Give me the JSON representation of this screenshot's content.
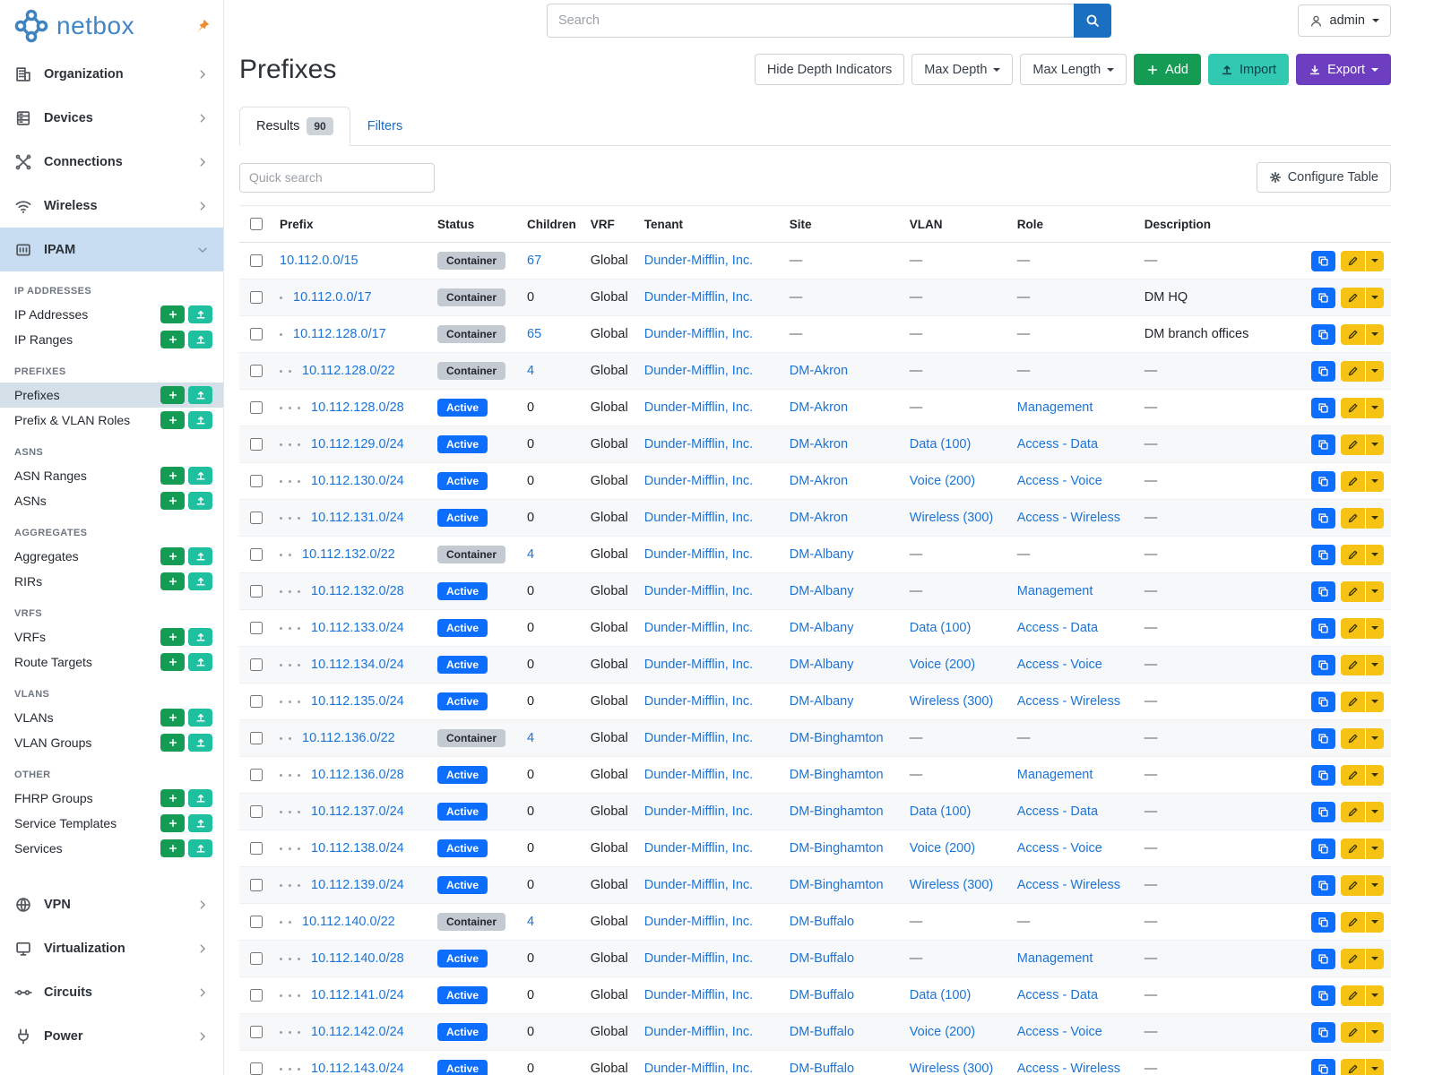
{
  "brand": {
    "name": "netbox"
  },
  "topbar": {
    "search_placeholder": "Search",
    "user_label": "admin"
  },
  "sidebar": {
    "top_items": [
      {
        "label": "Organization",
        "icon": "building-icon"
      },
      {
        "label": "Devices",
        "icon": "rack-icon"
      },
      {
        "label": "Connections",
        "icon": "cable-icon"
      },
      {
        "label": "Wireless",
        "icon": "wifi-icon"
      }
    ],
    "ipam": {
      "label": "IPAM",
      "icon": "ipam-icon"
    },
    "groups": [
      {
        "heading": "IP ADDRESSES",
        "items": [
          {
            "label": "IP Addresses"
          },
          {
            "label": "IP Ranges"
          }
        ]
      },
      {
        "heading": "PREFIXES",
        "items": [
          {
            "label": "Prefixes",
            "active": true
          },
          {
            "label": "Prefix & VLAN Roles"
          }
        ]
      },
      {
        "heading": "ASNS",
        "items": [
          {
            "label": "ASN Ranges"
          },
          {
            "label": "ASNs"
          }
        ]
      },
      {
        "heading": "AGGREGATES",
        "items": [
          {
            "label": "Aggregates"
          },
          {
            "label": "RIRs"
          }
        ]
      },
      {
        "heading": "VRFS",
        "items": [
          {
            "label": "VRFs"
          },
          {
            "label": "Route Targets"
          }
        ]
      },
      {
        "heading": "VLANS",
        "items": [
          {
            "label": "VLANs"
          },
          {
            "label": "VLAN Groups"
          }
        ]
      },
      {
        "heading": "OTHER",
        "items": [
          {
            "label": "FHRP Groups"
          },
          {
            "label": "Service Templates"
          },
          {
            "label": "Services"
          }
        ]
      }
    ],
    "bottom_items": [
      {
        "label": "VPN",
        "icon": "vpn-icon"
      },
      {
        "label": "Virtualization",
        "icon": "monitor-icon"
      },
      {
        "label": "Circuits",
        "icon": "circuit-icon"
      },
      {
        "label": "Power",
        "icon": "power-icon"
      }
    ]
  },
  "page": {
    "title": "Prefixes",
    "hide_depth_label": "Hide Depth Indicators",
    "max_depth_label": "Max Depth",
    "max_length_label": "Max Length",
    "add_label": "Add",
    "import_label": "Import",
    "export_label": "Export",
    "tabs": {
      "results_label": "Results",
      "results_badge": "90",
      "filters_label": "Filters"
    },
    "quick_search_placeholder": "Quick search",
    "configure_table_label": "Configure Table"
  },
  "table": {
    "columns": [
      "Prefix",
      "Status",
      "Children",
      "VRF",
      "Tenant",
      "Site",
      "VLAN",
      "Role",
      "Description"
    ],
    "rows": [
      {
        "depth": 0,
        "prefix": "10.112.0.0/15",
        "status": "Container",
        "children": "67",
        "vrf": "Global",
        "tenant": "Dunder-Mifflin, Inc.",
        "site": "—",
        "vlan": "—",
        "role": "—",
        "description": "—"
      },
      {
        "depth": 1,
        "prefix": "10.112.0.0/17",
        "status": "Container",
        "children": "0",
        "vrf": "Global",
        "tenant": "Dunder-Mifflin, Inc.",
        "site": "—",
        "vlan": "—",
        "role": "—",
        "description": "DM HQ"
      },
      {
        "depth": 1,
        "prefix": "10.112.128.0/17",
        "status": "Container",
        "children": "65",
        "vrf": "Global",
        "tenant": "Dunder-Mifflin, Inc.",
        "site": "—",
        "vlan": "—",
        "role": "—",
        "description": "DM branch offices"
      },
      {
        "depth": 2,
        "prefix": "10.112.128.0/22",
        "status": "Container",
        "children": "4",
        "vrf": "Global",
        "tenant": "Dunder-Mifflin, Inc.",
        "site": "DM-Akron",
        "vlan": "—",
        "role": "—",
        "description": "—"
      },
      {
        "depth": 3,
        "prefix": "10.112.128.0/28",
        "status": "Active",
        "children": "0",
        "vrf": "Global",
        "tenant": "Dunder-Mifflin, Inc.",
        "site": "DM-Akron",
        "vlan": "—",
        "role": "Management",
        "description": "—"
      },
      {
        "depth": 3,
        "prefix": "10.112.129.0/24",
        "status": "Active",
        "children": "0",
        "vrf": "Global",
        "tenant": "Dunder-Mifflin, Inc.",
        "site": "DM-Akron",
        "vlan": "Data (100)",
        "role": "Access - Data",
        "description": "—"
      },
      {
        "depth": 3,
        "prefix": "10.112.130.0/24",
        "status": "Active",
        "children": "0",
        "vrf": "Global",
        "tenant": "Dunder-Mifflin, Inc.",
        "site": "DM-Akron",
        "vlan": "Voice (200)",
        "role": "Access - Voice",
        "description": "—"
      },
      {
        "depth": 3,
        "prefix": "10.112.131.0/24",
        "status": "Active",
        "children": "0",
        "vrf": "Global",
        "tenant": "Dunder-Mifflin, Inc.",
        "site": "DM-Akron",
        "vlan": "Wireless (300)",
        "role": "Access - Wireless",
        "description": "—"
      },
      {
        "depth": 2,
        "prefix": "10.112.132.0/22",
        "status": "Container",
        "children": "4",
        "vrf": "Global",
        "tenant": "Dunder-Mifflin, Inc.",
        "site": "DM-Albany",
        "vlan": "—",
        "role": "—",
        "description": "—"
      },
      {
        "depth": 3,
        "prefix": "10.112.132.0/28",
        "status": "Active",
        "children": "0",
        "vrf": "Global",
        "tenant": "Dunder-Mifflin, Inc.",
        "site": "DM-Albany",
        "vlan": "—",
        "role": "Management",
        "description": "—"
      },
      {
        "depth": 3,
        "prefix": "10.112.133.0/24",
        "status": "Active",
        "children": "0",
        "vrf": "Global",
        "tenant": "Dunder-Mifflin, Inc.",
        "site": "DM-Albany",
        "vlan": "Data (100)",
        "role": "Access - Data",
        "description": "—"
      },
      {
        "depth": 3,
        "prefix": "10.112.134.0/24",
        "status": "Active",
        "children": "0",
        "vrf": "Global",
        "tenant": "Dunder-Mifflin, Inc.",
        "site": "DM-Albany",
        "vlan": "Voice (200)",
        "role": "Access - Voice",
        "description": "—"
      },
      {
        "depth": 3,
        "prefix": "10.112.135.0/24",
        "status": "Active",
        "children": "0",
        "vrf": "Global",
        "tenant": "Dunder-Mifflin, Inc.",
        "site": "DM-Albany",
        "vlan": "Wireless (300)",
        "role": "Access - Wireless",
        "description": "—"
      },
      {
        "depth": 2,
        "prefix": "10.112.136.0/22",
        "status": "Container",
        "children": "4",
        "vrf": "Global",
        "tenant": "Dunder-Mifflin, Inc.",
        "site": "DM-Binghamton",
        "vlan": "—",
        "role": "—",
        "description": "—"
      },
      {
        "depth": 3,
        "prefix": "10.112.136.0/28",
        "status": "Active",
        "children": "0",
        "vrf": "Global",
        "tenant": "Dunder-Mifflin, Inc.",
        "site": "DM-Binghamton",
        "vlan": "—",
        "role": "Management",
        "description": "—"
      },
      {
        "depth": 3,
        "prefix": "10.112.137.0/24",
        "status": "Active",
        "children": "0",
        "vrf": "Global",
        "tenant": "Dunder-Mifflin, Inc.",
        "site": "DM-Binghamton",
        "vlan": "Data (100)",
        "role": "Access - Data",
        "description": "—"
      },
      {
        "depth": 3,
        "prefix": "10.112.138.0/24",
        "status": "Active",
        "children": "0",
        "vrf": "Global",
        "tenant": "Dunder-Mifflin, Inc.",
        "site": "DM-Binghamton",
        "vlan": "Voice (200)",
        "role": "Access - Voice",
        "description": "—"
      },
      {
        "depth": 3,
        "prefix": "10.112.139.0/24",
        "status": "Active",
        "children": "0",
        "vrf": "Global",
        "tenant": "Dunder-Mifflin, Inc.",
        "site": "DM-Binghamton",
        "vlan": "Wireless (300)",
        "role": "Access - Wireless",
        "description": "—"
      },
      {
        "depth": 2,
        "prefix": "10.112.140.0/22",
        "status": "Container",
        "children": "4",
        "vrf": "Global",
        "tenant": "Dunder-Mifflin, Inc.",
        "site": "DM-Buffalo",
        "vlan": "—",
        "role": "—",
        "description": "—"
      },
      {
        "depth": 3,
        "prefix": "10.112.140.0/28",
        "status": "Active",
        "children": "0",
        "vrf": "Global",
        "tenant": "Dunder-Mifflin, Inc.",
        "site": "DM-Buffalo",
        "vlan": "—",
        "role": "Management",
        "description": "—"
      },
      {
        "depth": 3,
        "prefix": "10.112.141.0/24",
        "status": "Active",
        "children": "0",
        "vrf": "Global",
        "tenant": "Dunder-Mifflin, Inc.",
        "site": "DM-Buffalo",
        "vlan": "Data (100)",
        "role": "Access - Data",
        "description": "—"
      },
      {
        "depth": 3,
        "prefix": "10.112.142.0/24",
        "status": "Active",
        "children": "0",
        "vrf": "Global",
        "tenant": "Dunder-Mifflin, Inc.",
        "site": "DM-Buffalo",
        "vlan": "Voice (200)",
        "role": "Access - Voice",
        "description": "—"
      },
      {
        "depth": 3,
        "prefix": "10.112.143.0/24",
        "status": "Active",
        "children": "0",
        "vrf": "Global",
        "tenant": "Dunder-Mifflin, Inc.",
        "site": "DM-Buffalo",
        "vlan": "Wireless (300)",
        "role": "Access - Wireless",
        "description": "—"
      }
    ]
  },
  "colors": {
    "accent_blue": "#0d6efd",
    "green": "#149c54",
    "teal": "#31c9b0",
    "purple": "#6d3fc0",
    "yellow": "#f6c315",
    "badge_gray": "#c3cad1"
  }
}
